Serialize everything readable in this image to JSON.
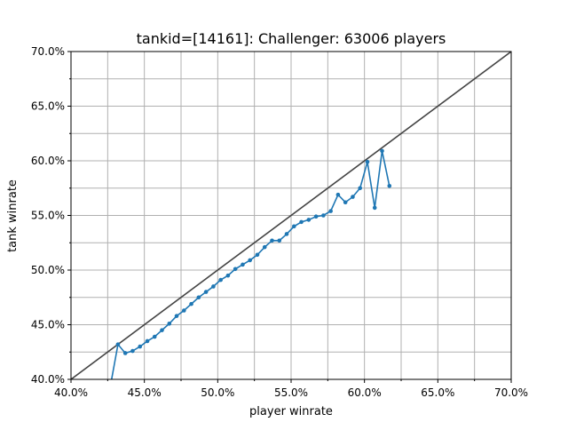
{
  "chart_data": {
    "type": "line",
    "title": "tankid=[14161]: Challenger: 63006 players",
    "xlabel": "player winrate",
    "ylabel": "tank winrate",
    "xlim": [
      0.4,
      0.7
    ],
    "ylim": [
      0.4,
      0.7
    ],
    "grid": true,
    "x_ticks": [
      "40.0%",
      "45.0%",
      "50.0%",
      "55.0%",
      "60.0%",
      "65.0%",
      "70.0%"
    ],
    "y_ticks": [
      "40.0%",
      "45.0%",
      "50.0%",
      "55.0%",
      "60.0%",
      "65.0%",
      "70.0%"
    ],
    "reference_line": {
      "from": [
        0.4,
        0.4
      ],
      "to": [
        0.7,
        0.7
      ],
      "color": "#444444"
    },
    "series": [
      {
        "color": "#1f77b4",
        "x": [
          0.427,
          0.432,
          0.437,
          0.442,
          0.447,
          0.452,
          0.457,
          0.462,
          0.467,
          0.472,
          0.477,
          0.482,
          0.487,
          0.492,
          0.497,
          0.502,
          0.507,
          0.512,
          0.517,
          0.522,
          0.527,
          0.532,
          0.537,
          0.542,
          0.547,
          0.552,
          0.557,
          0.562,
          0.567,
          0.572,
          0.577,
          0.582,
          0.587,
          0.592,
          0.597,
          0.602,
          0.607,
          0.612,
          0.617
        ],
        "y": [
          0.395,
          0.432,
          0.424,
          0.426,
          0.43,
          0.435,
          0.439,
          0.445,
          0.451,
          0.458,
          0.463,
          0.469,
          0.475,
          0.48,
          0.485,
          0.491,
          0.495,
          0.501,
          0.505,
          0.509,
          0.514,
          0.521,
          0.527,
          0.527,
          0.533,
          0.54,
          0.544,
          0.546,
          0.549,
          0.55,
          0.554,
          0.569,
          0.562,
          0.567,
          0.575,
          0.599,
          0.557,
          0.609,
          0.577
        ]
      }
    ]
  }
}
